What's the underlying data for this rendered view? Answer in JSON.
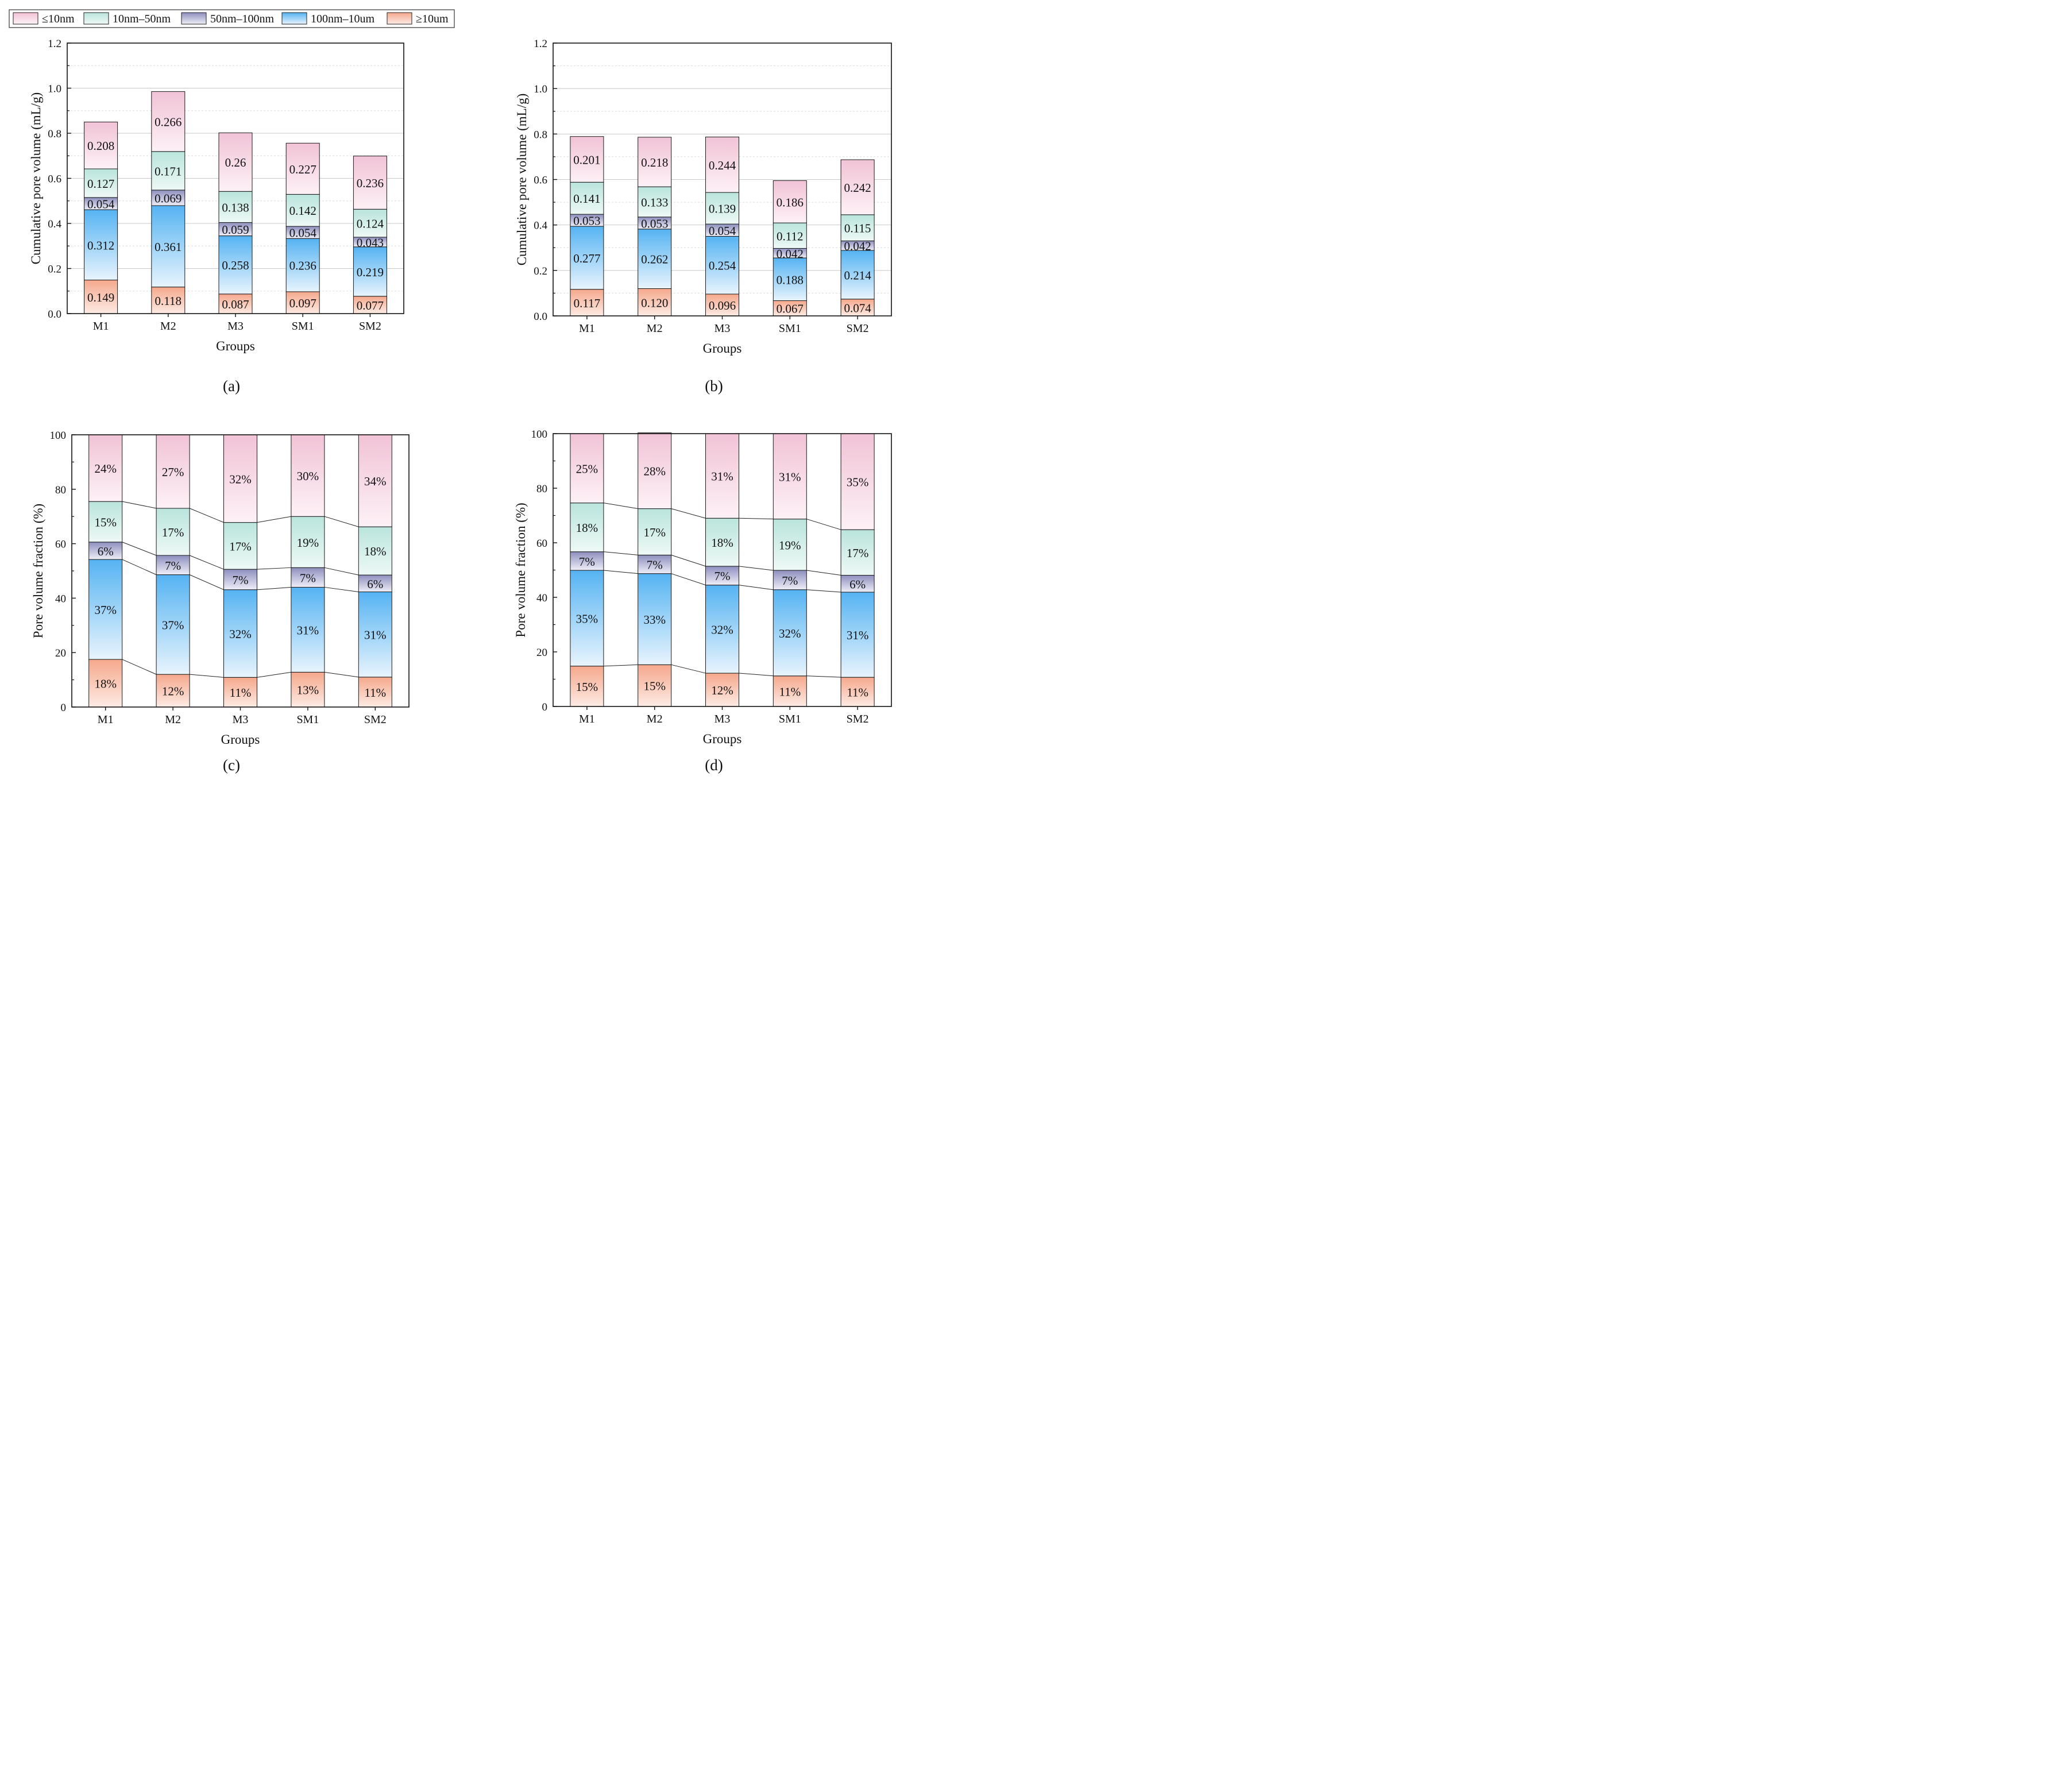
{
  "legend": {
    "items": [
      {
        "label": "≤10nm",
        "top": "#f1c3d6",
        "bottom": "#fdf1f6"
      },
      {
        "label": "10nm–50nm",
        "top": "#b9e4dc",
        "bottom": "#eef9f6"
      },
      {
        "label": "50nm–100nm",
        "top": "#8d8fbe",
        "bottom": "#eeeef8"
      },
      {
        "label": "100nm–10um",
        "top": "#55b3f2",
        "bottom": "#e8f4fd"
      },
      {
        "label": "≥10um",
        "top": "#f5a88c",
        "bottom": "#fdebe4"
      }
    ]
  },
  "panels": [
    {
      "label": "(a)"
    },
    {
      "label": "(b)"
    },
    {
      "label": "(c)"
    },
    {
      "label": "(d)"
    }
  ],
  "chart_data": [
    {
      "type": "bar",
      "stacked": true,
      "panel": "(a)",
      "xlabel": "Groups",
      "ylabel": "Cumulative pore volume (mL/g)",
      "ylim": [
        0,
        1.2
      ],
      "yticks": [
        "0.0",
        "0.2",
        "0.4",
        "0.6",
        "0.8",
        "1.0",
        "1.2"
      ],
      "grid": true,
      "categories": [
        "M1",
        "M2",
        "M3",
        "SM1",
        "SM2"
      ],
      "series": [
        {
          "name": "≥10um",
          "values": [
            0.149,
            0.118,
            0.087,
            0.097,
            0.077
          ],
          "labels": [
            "0.149",
            "0.118",
            "0.087",
            "0.097",
            "0.077"
          ]
        },
        {
          "name": "100nm–10um",
          "values": [
            0.312,
            0.361,
            0.258,
            0.236,
            0.219
          ],
          "labels": [
            "0.312",
            "0.361",
            "0.258",
            "0.236",
            "0.219"
          ]
        },
        {
          "name": "50nm–100nm",
          "values": [
            0.054,
            0.069,
            0.059,
            0.054,
            0.043
          ],
          "labels": [
            "0.054",
            "0.069",
            "0.059",
            "0.054",
            "0.043"
          ]
        },
        {
          "name": "10nm–50nm",
          "values": [
            0.127,
            0.171,
            0.138,
            0.142,
            0.124
          ],
          "labels": [
            "0.127",
            "0.171",
            "0.138",
            "0.142",
            "0.124"
          ]
        },
        {
          "name": "≤10nm",
          "values": [
            0.208,
            0.266,
            0.26,
            0.227,
            0.236
          ],
          "labels": [
            "0.208",
            "0.266",
            "0.26",
            "0.227",
            "0.236"
          ]
        }
      ]
    },
    {
      "type": "bar",
      "stacked": true,
      "panel": "(b)",
      "xlabel": "Groups",
      "ylabel": "Cumulative pore volume (mL/g)",
      "ylim": [
        0,
        1.2
      ],
      "yticks": [
        "0.0",
        "0.2",
        "0.4",
        "0.6",
        "0.8",
        "1.0",
        "1.2"
      ],
      "grid": true,
      "categories": [
        "M1",
        "M2",
        "M3",
        "SM1",
        "SM2"
      ],
      "series": [
        {
          "name": "≥10um",
          "values": [
            0.117,
            0.12,
            0.096,
            0.067,
            0.074
          ],
          "labels": [
            "0.117",
            "0.120",
            "0.096",
            "0.067",
            "0.074"
          ]
        },
        {
          "name": "100nm–10um",
          "values": [
            0.277,
            0.262,
            0.254,
            0.188,
            0.214
          ],
          "labels": [
            "0.277",
            "0.262",
            "0.254",
            "0.188",
            "0.214"
          ]
        },
        {
          "name": "50nm–100nm",
          "values": [
            0.053,
            0.053,
            0.054,
            0.042,
            0.042
          ],
          "labels": [
            "0.053",
            "0.053",
            "0.054",
            "0.042",
            "0.042"
          ]
        },
        {
          "name": "10nm–50nm",
          "values": [
            0.141,
            0.133,
            0.139,
            0.112,
            0.115
          ],
          "labels": [
            "0.141",
            "0.133",
            "0.139",
            "0.112",
            "0.115"
          ]
        },
        {
          "name": "≤10nm",
          "values": [
            0.201,
            0.218,
            0.244,
            0.186,
            0.242
          ],
          "labels": [
            "0.201",
            "0.218",
            "0.244",
            "0.186",
            "0.242"
          ]
        }
      ]
    },
    {
      "type": "bar",
      "stacked": true,
      "percent": true,
      "connector_lines": true,
      "panel": "(c)",
      "xlabel": "Groups",
      "ylabel": "Pore volume fraction (%)",
      "ylim": [
        0,
        100
      ],
      "yticks": [
        "0",
        "20",
        "40",
        "60",
        "80",
        "100"
      ],
      "grid": false,
      "categories": [
        "M1",
        "M2",
        "M3",
        "SM1",
        "SM2"
      ],
      "series": [
        {
          "name": "≥10um",
          "values": [
            17.5,
            12.0,
            10.9,
            12.8,
            11.0
          ],
          "labels": [
            "18%",
            "12%",
            "11%",
            "13%",
            "11%"
          ]
        },
        {
          "name": "100nm–10um",
          "values": [
            36.7,
            36.6,
            32.2,
            31.2,
            31.3
          ],
          "labels": [
            "37%",
            "37%",
            "32%",
            "31%",
            "31%"
          ]
        },
        {
          "name": "50nm–100nm",
          "values": [
            6.4,
            7.1,
            7.5,
            7.2,
            6.2
          ],
          "labels": [
            "6%",
            "7%",
            "7%",
            "7%",
            "6%"
          ]
        },
        {
          "name": "10nm–50nm",
          "values": [
            14.9,
            17.3,
            17.2,
            18.8,
            17.7
          ],
          "labels": [
            "15%",
            "17%",
            "17%",
            "19%",
            "18%"
          ]
        },
        {
          "name": "≤10nm",
          "values": [
            24.5,
            27.0,
            32.2,
            30.0,
            33.8
          ],
          "labels": [
            "24%",
            "27%",
            "32%",
            "30%",
            "34%"
          ]
        }
      ]
    },
    {
      "type": "bar",
      "stacked": true,
      "percent": true,
      "connector_lines": true,
      "panel": "(d)",
      "xlabel": "Groups",
      "ylabel": "Pore volume fraction (%)",
      "ylim": [
        0,
        100
      ],
      "yticks": [
        "0",
        "20",
        "40",
        "60",
        "80",
        "100"
      ],
      "grid": false,
      "categories": [
        "M1",
        "M2",
        "M3",
        "SM1",
        "SM2"
      ],
      "series": [
        {
          "name": "≥10um",
          "values": [
            14.8,
            15.3,
            12.2,
            11.2,
            10.7
          ],
          "labels": [
            "15%",
            "15%",
            "12%",
            "11%",
            "11%"
          ]
        },
        {
          "name": "100nm–10um",
          "values": [
            35.1,
            33.4,
            32.3,
            31.6,
            31.2
          ],
          "labels": [
            "35%",
            "33%",
            "32%",
            "32%",
            "31%"
          ]
        },
        {
          "name": "50nm–100nm",
          "values": [
            6.8,
            6.8,
            6.9,
            7.1,
            6.2
          ],
          "labels": [
            "7%",
            "7%",
            "7%",
            "7%",
            "6%"
          ]
        },
        {
          "name": "10nm–50nm",
          "values": [
            17.9,
            17.0,
            17.6,
            18.8,
            16.7
          ],
          "labels": [
            "18%",
            "17%",
            "18%",
            "19%",
            "17%"
          ]
        },
        {
          "name": "≤10nm",
          "values": [
            25.4,
            27.8,
            31.0,
            31.3,
            35.2
          ],
          "labels": [
            "25%",
            "28%",
            "31%",
            "31%",
            "35%"
          ]
        }
      ]
    }
  ]
}
